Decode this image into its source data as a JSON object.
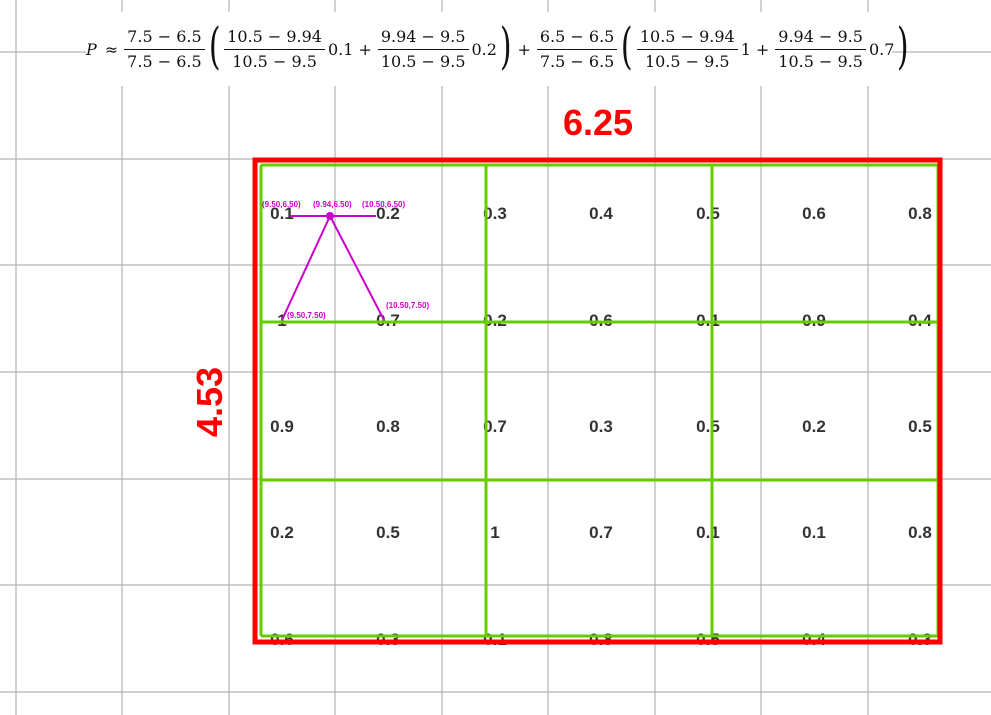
{
  "formula": {
    "lhs": "P",
    "approx": "≈",
    "plus": "+",
    "term1": {
      "frac_num": "7.5 − 6.5",
      "frac_den": "7.5 − 6.5",
      "a_num": "10.5 − 9.94",
      "a_den": "10.5 − 9.5",
      "a_coef": "0.1",
      "b_num": "9.94 − 9.5",
      "b_den": "10.5 − 9.5",
      "b_coef": "0.2"
    },
    "term2": {
      "frac_num": "6.5 − 6.5",
      "frac_den": "7.5 − 6.5",
      "a_num": "10.5 − 9.94",
      "a_den": "10.5 − 9.5",
      "a_coef": "1",
      "b_num": "9.94 − 9.5",
      "b_den": "10.5 − 9.5",
      "b_coef": "0.7"
    }
  },
  "width_label": "6.25",
  "height_label": "4.53",
  "grid_values": [
    [
      "0.1",
      "0.2",
      "0.3",
      "0.4",
      "0.5",
      "0.6",
      "0.8"
    ],
    [
      "1",
      "0.7",
      "0.2",
      "0.6",
      "0.1",
      "0.9",
      "0.4"
    ],
    [
      "0.9",
      "0.8",
      "0.7",
      "0.3",
      "0.5",
      "0.2",
      "0.5"
    ],
    [
      "0.2",
      "0.5",
      "1",
      "0.7",
      "0.1",
      "0.1",
      "0.8"
    ],
    [
      "0.6",
      "0.3",
      "0.1",
      "0.8",
      "0.5",
      "0.4",
      "0.3"
    ]
  ],
  "sample_points": {
    "top_left": "(9.50,6.50)",
    "top_mid": "(9.94,6.50)",
    "top_right": "(10.50,6.50)",
    "bottom_left": "(9.50,7.50)",
    "bottom_right": "(10.50,7.50)"
  },
  "colors": {
    "grid_line": "#b3b3b3",
    "outer_box": "#ff0000",
    "inner_grid": "#66cc00",
    "annotation": "#cc00cc",
    "dimension_text": "#ff0000",
    "cell_text": "#333333"
  }
}
